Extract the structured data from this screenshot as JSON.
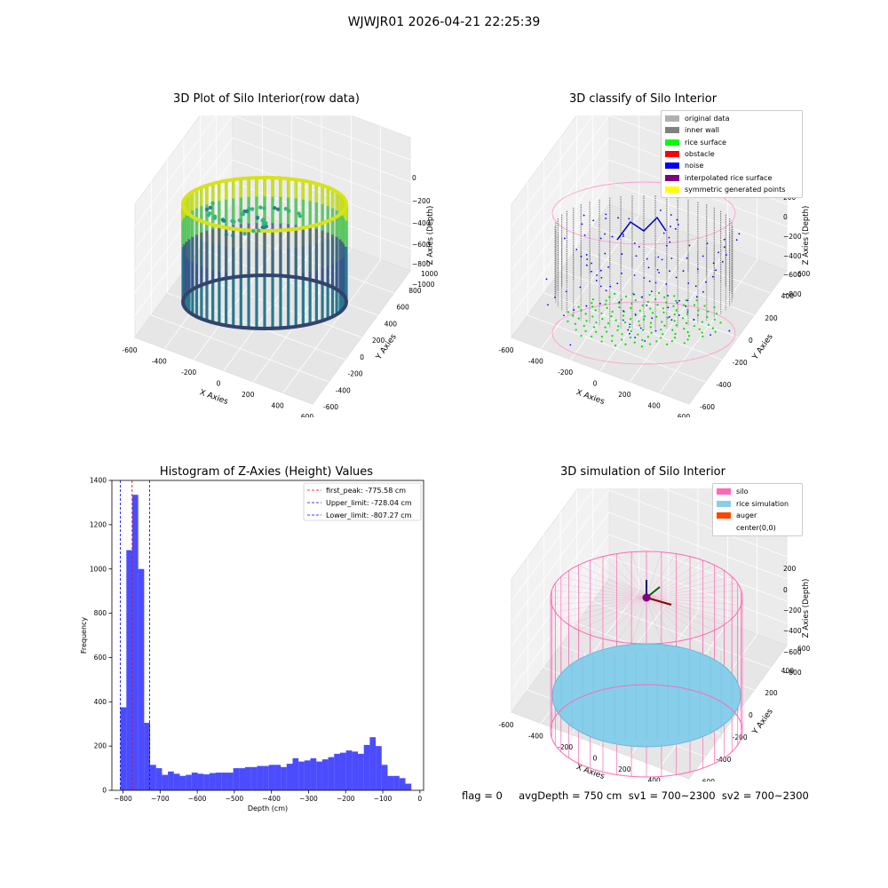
{
  "suptitle": "WJWJR01 2026-04-21 22:25:39",
  "panels": {
    "raw": {
      "title": "3D Plot of Silo Interior(row data)",
      "xlabel": "X Axies",
      "ylabel": "Y Axies",
      "zlabel": "Z Axies (Depth)",
      "xticks": [
        "-600",
        "-400",
        "-200",
        "0",
        "200",
        "400",
        "600"
      ],
      "yticks": [
        "-600",
        "-400",
        "-200",
        "0",
        "200",
        "400",
        "600",
        "800",
        "1000"
      ],
      "zticks": [
        "0",
        "−200",
        "−400",
        "−600",
        "−800",
        "−1000"
      ]
    },
    "classify": {
      "title": "3D classify of Silo Interior",
      "xlabel": "X Axies",
      "ylabel": "Y Axies",
      "zlabel": "Z Axies (Depth)",
      "xticks": [
        "-600",
        "-400",
        "-200",
        "0",
        "200",
        "400",
        "600"
      ],
      "yticks": [
        "-600",
        "-400",
        "-200",
        "0",
        "200",
        "400",
        "600"
      ],
      "zticks": [
        "200",
        "0",
        "−200",
        "−400",
        "−600",
        "−800"
      ],
      "legend": [
        {
          "label": "original data",
          "color": "#b0b0b0"
        },
        {
          "label": "inner wall",
          "color": "#808080"
        },
        {
          "label": "rice surface",
          "color": "#00ff00"
        },
        {
          "label": "obstacle",
          "color": "#ff0000"
        },
        {
          "label": "noise",
          "color": "#0000ff"
        },
        {
          "label": "interpolated rice surface",
          "color": "#800080"
        },
        {
          "label": "symmetric generated points",
          "color": "#ffff00"
        }
      ]
    },
    "simulation": {
      "title": "3D simulation of Silo Interior",
      "xlabel": "X Axies",
      "ylabel": "Y Axies",
      "zlabel": "Z Axies (Depth)",
      "xticks": [
        "-600",
        "-400",
        "-200",
        "0",
        "200",
        "400",
        "600"
      ],
      "yticks": [
        "-600",
        "-400",
        "-200",
        "0",
        "200",
        "400",
        "600"
      ],
      "zticks": [
        "200",
        "0",
        "−200",
        "−400",
        "−600",
        "−800"
      ],
      "legend": [
        {
          "label": "silo",
          "color": "#ff69b4"
        },
        {
          "label": "rice simulation",
          "color": "#87ceeb"
        },
        {
          "label": "auger",
          "color": "#ff4500"
        },
        {
          "label": "center(0,0)",
          "color": ""
        }
      ]
    }
  },
  "footer": "flag = 0     avgDepth = 750 cm  sv1 = 700~2300  sv2 = 700~2300",
  "chart_data": {
    "type": "bar",
    "title": "Histogram of Z-Axies (Height) Values",
    "xlabel": "Depth (cm)",
    "ylabel": "Frequency",
    "xlim": [
      -830,
      10
    ],
    "ylim": [
      0,
      1400
    ],
    "xticks": [
      -800,
      -700,
      -600,
      -500,
      -400,
      -300,
      -200,
      -100,
      0
    ],
    "yticks": [
      0,
      200,
      400,
      600,
      800,
      1000,
      1200,
      1400
    ],
    "bar_color": "#0000ff",
    "bin_width": 16,
    "bin_start": -807,
    "values": [
      375,
      1085,
      1335,
      1000,
      305,
      115,
      100,
      70,
      85,
      75,
      65,
      70,
      80,
      75,
      72,
      78,
      80,
      80,
      80,
      100,
      100,
      105,
      105,
      110,
      110,
      115,
      115,
      105,
      120,
      145,
      130,
      135,
      145,
      130,
      140,
      150,
      165,
      170,
      180,
      175,
      165,
      205,
      240,
      200,
      115,
      65,
      65,
      55,
      30
    ],
    "vlines": [
      {
        "label": "first_peak: -775.58 cm",
        "x": -775.58,
        "color": "#ff0000"
      },
      {
        "label": "Upper_limit: -728.04 cm",
        "x": -728.04,
        "color": "#0000ff"
      },
      {
        "label": "Lower_limit: -807.27 cm",
        "x": -807.27,
        "color": "#0000ff"
      }
    ],
    "legend_position": "top-right"
  }
}
